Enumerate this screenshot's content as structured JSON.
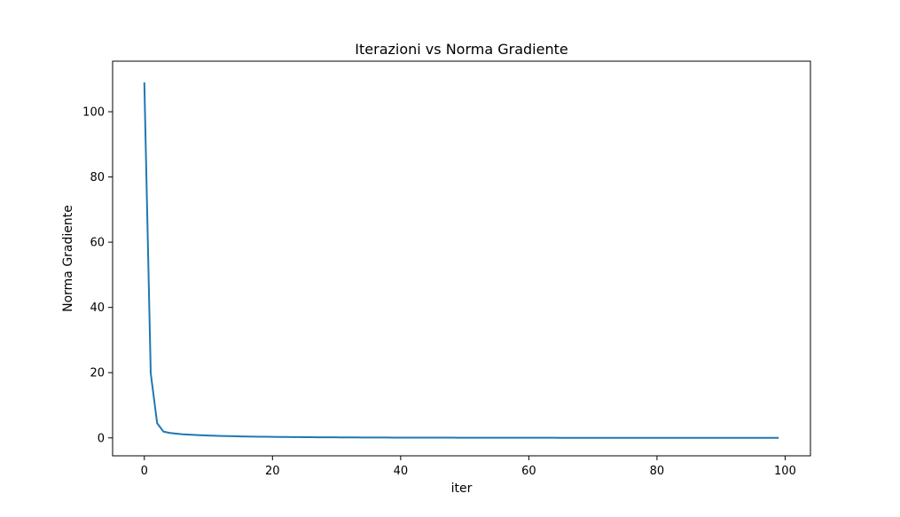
{
  "chart_data": {
    "type": "line",
    "title": "Iterazioni vs Norma Gradiente",
    "xlabel": "iter",
    "ylabel": "Norma Gradiente",
    "xlim": [
      -4.95,
      103.95
    ],
    "ylim": [
      -5.5,
      115.5
    ],
    "xticks": [
      0,
      20,
      40,
      60,
      80,
      100
    ],
    "yticks": [
      0,
      20,
      40,
      60,
      80,
      100
    ],
    "grid": false,
    "series": [
      {
        "color": "#1f77b4",
        "x": [
          0,
          1,
          2,
          3,
          4,
          5,
          6,
          7,
          8,
          9,
          10,
          11,
          12,
          13,
          14,
          15,
          16,
          17,
          18,
          19,
          20,
          21,
          22,
          23,
          24,
          25,
          26,
          27,
          28,
          29,
          30,
          31,
          32,
          33,
          34,
          35,
          36,
          37,
          38,
          39,
          40,
          41,
          42,
          43,
          44,
          45,
          46,
          47,
          48,
          49,
          50,
          51,
          52,
          53,
          54,
          55,
          56,
          57,
          58,
          59,
          60,
          61,
          62,
          63,
          64,
          65,
          66,
          67,
          68,
          69,
          70,
          71,
          72,
          73,
          74,
          75,
          76,
          77,
          78,
          79,
          80,
          81,
          82,
          83,
          84,
          85,
          86,
          87,
          88,
          89,
          90,
          91,
          92,
          93,
          94,
          95,
          96,
          97,
          98,
          99
        ],
        "y": [
          109,
          19.8,
          4.5,
          1.9,
          1.5,
          1.3,
          1.1,
          1.0,
          0.9,
          0.8,
          0.72,
          0.66,
          0.6,
          0.55,
          0.5,
          0.46,
          0.42,
          0.39,
          0.36,
          0.33,
          0.31,
          0.29,
          0.27,
          0.25,
          0.23,
          0.22,
          0.2,
          0.19,
          0.18,
          0.17,
          0.16,
          0.15,
          0.14,
          0.13,
          0.12,
          0.12,
          0.11,
          0.1,
          0.1,
          0.09,
          0.09,
          0.08,
          0.08,
          0.07,
          0.07,
          0.07,
          0.06,
          0.06,
          0.06,
          0.05,
          0.05,
          0.05,
          0.05,
          0.04,
          0.04,
          0.04,
          0.04,
          0.04,
          0.03,
          0.03,
          0.03,
          0.03,
          0.03,
          0.03,
          0.03,
          0.02,
          0.02,
          0.02,
          0.02,
          0.02,
          0.02,
          0.02,
          0.02,
          0.02,
          0.02,
          0.01,
          0.01,
          0.01,
          0.01,
          0.01,
          0.01,
          0.01,
          0.01,
          0.01,
          0.01,
          0.01,
          0.01,
          0.01,
          0.01,
          0.01,
          0.01,
          0.01,
          0.01,
          0.01,
          0.01,
          0.01,
          0.01,
          0.01,
          0.01,
          0.01
        ]
      }
    ]
  }
}
